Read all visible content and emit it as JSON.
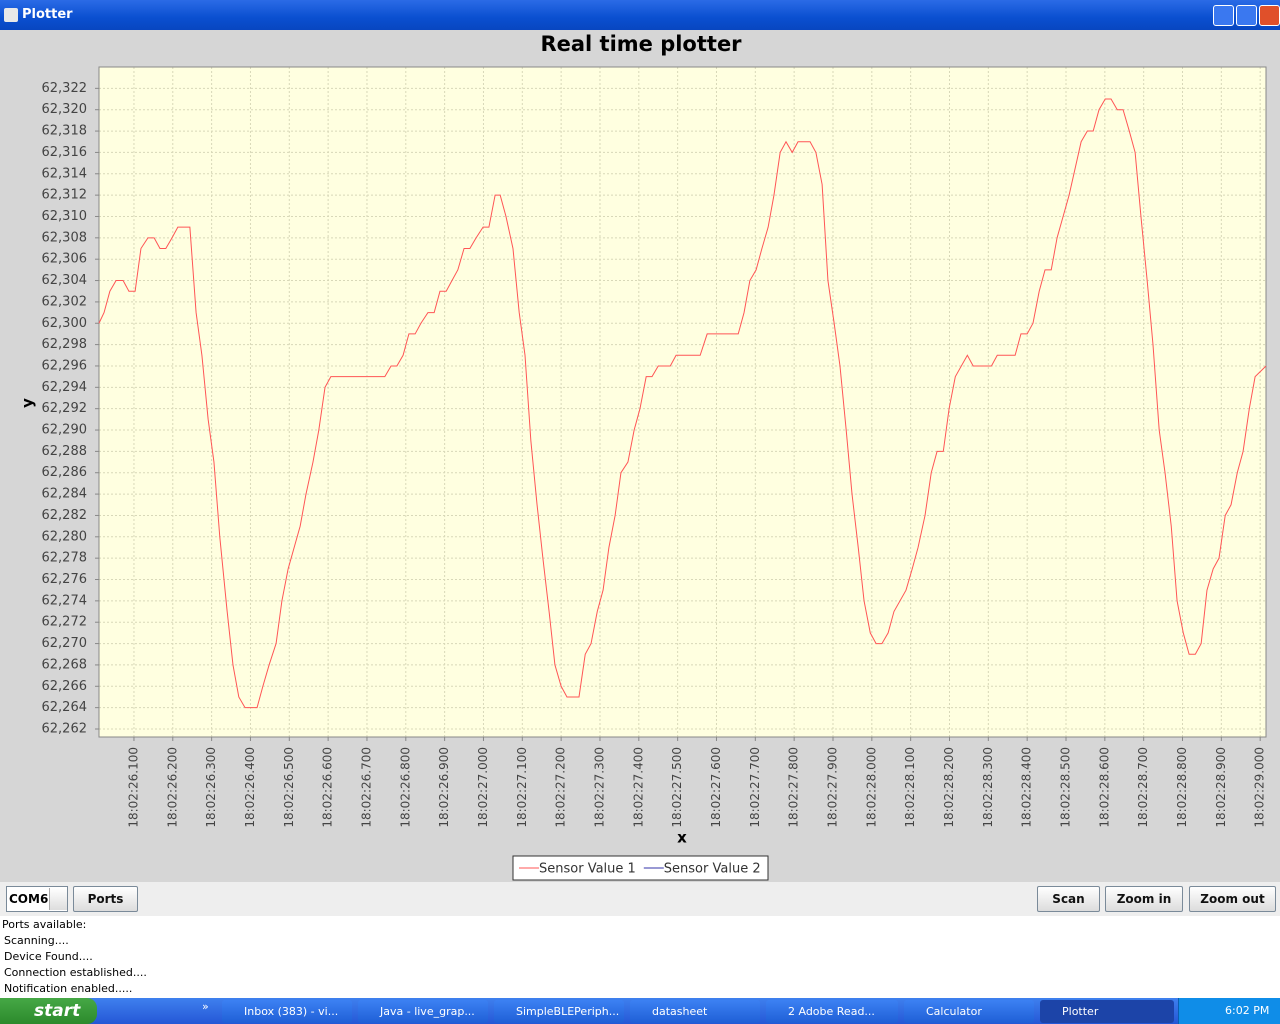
{
  "window": {
    "title": "Plotter"
  },
  "chart_data": {
    "type": "line",
    "title": "Real time plotter",
    "x_label": "x",
    "y_label": "y",
    "xlim": [
      26.01,
      29.015
    ],
    "ylim": [
      62261.25,
      62324
    ],
    "grid": true,
    "legend": "bottom",
    "xticks": [
      {
        "value": 26.1,
        "label": "18:02:26.100"
      },
      {
        "value": 26.2,
        "label": "18:02:26.200"
      },
      {
        "value": 26.3,
        "label": "18:02:26.300"
      },
      {
        "value": 26.4,
        "label": "18:02:26.400"
      },
      {
        "value": 26.5,
        "label": "18:02:26.500"
      },
      {
        "value": 26.6,
        "label": "18:02:26.600"
      },
      {
        "value": 26.7,
        "label": "18:02:26.700"
      },
      {
        "value": 26.8,
        "label": "18:02:26.800"
      },
      {
        "value": 26.9,
        "label": "18:02:26.900"
      },
      {
        "value": 27.0,
        "label": "18:02:27.000"
      },
      {
        "value": 27.1,
        "label": "18:02:27.100"
      },
      {
        "value": 27.2,
        "label": "18:02:27.200"
      },
      {
        "value": 27.3,
        "label": "18:02:27.300"
      },
      {
        "value": 27.4,
        "label": "18:02:27.400"
      },
      {
        "value": 27.5,
        "label": "18:02:27.500"
      },
      {
        "value": 27.6,
        "label": "18:02:27.600"
      },
      {
        "value": 27.7,
        "label": "18:02:27.700"
      },
      {
        "value": 27.8,
        "label": "18:02:27.800"
      },
      {
        "value": 27.9,
        "label": "18:02:27.900"
      },
      {
        "value": 28.0,
        "label": "18:02:28.000"
      },
      {
        "value": 28.1,
        "label": "18:02:28.100"
      },
      {
        "value": 28.2,
        "label": "18:02:28.200"
      },
      {
        "value": 28.3,
        "label": "18:02:28.300"
      },
      {
        "value": 28.4,
        "label": "18:02:28.400"
      },
      {
        "value": 28.5,
        "label": "18:02:28.500"
      },
      {
        "value": 28.6,
        "label": "18:02:28.600"
      },
      {
        "value": 28.7,
        "label": "18:02:28.700"
      },
      {
        "value": 28.8,
        "label": "18:02:28.800"
      },
      {
        "value": 28.9,
        "label": "18:02:28.900"
      },
      {
        "value": 29.0,
        "label": "18:02:29.000"
      }
    ],
    "yticks": [
      {
        "value": 62262,
        "label": "62,262"
      },
      {
        "value": 62264,
        "label": "62,264"
      },
      {
        "value": 62266,
        "label": "62,266"
      },
      {
        "value": 62268,
        "label": "62,268"
      },
      {
        "value": 62270,
        "label": "62,270"
      },
      {
        "value": 62272,
        "label": "62,272"
      },
      {
        "value": 62274,
        "label": "62,274"
      },
      {
        "value": 62276,
        "label": "62,276"
      },
      {
        "value": 62278,
        "label": "62,278"
      },
      {
        "value": 62280,
        "label": "62,280"
      },
      {
        "value": 62282,
        "label": "62,282"
      },
      {
        "value": 62284,
        "label": "62,284"
      },
      {
        "value": 62286,
        "label": "62,286"
      },
      {
        "value": 62288,
        "label": "62,288"
      },
      {
        "value": 62290,
        "label": "62,290"
      },
      {
        "value": 62292,
        "label": "62,292"
      },
      {
        "value": 62294,
        "label": "62,294"
      },
      {
        "value": 62296,
        "label": "62,296"
      },
      {
        "value": 62298,
        "label": "62,298"
      },
      {
        "value": 62300,
        "label": "62,300"
      },
      {
        "value": 62302,
        "label": "62,302"
      },
      {
        "value": 62304,
        "label": "62,304"
      },
      {
        "value": 62306,
        "label": "62,306"
      },
      {
        "value": 62308,
        "label": "62,308"
      },
      {
        "value": 62310,
        "label": "62,310"
      },
      {
        "value": 62312,
        "label": "62,312"
      },
      {
        "value": 62314,
        "label": "62,314"
      },
      {
        "value": 62316,
        "label": "62,316"
      },
      {
        "value": 62318,
        "label": "62,318"
      },
      {
        "value": 62320,
        "label": "62,320"
      },
      {
        "value": 62322,
        "label": "62,322"
      }
    ],
    "series": [
      {
        "name": "Sensor Value 1",
        "color": "#ff5555",
        "x": [
          26.01,
          26.023,
          26.038,
          26.054,
          26.072,
          26.087,
          26.103,
          26.118,
          26.136,
          26.152,
          26.167,
          26.182,
          26.198,
          26.213,
          26.244,
          26.26,
          26.275,
          26.291,
          26.306,
          26.321,
          26.34,
          26.355,
          26.37,
          26.386,
          26.417,
          26.432,
          26.448,
          26.466,
          26.481,
          26.497,
          26.528,
          26.543,
          26.561,
          26.576,
          26.592,
          26.607,
          26.746,
          26.762,
          26.777,
          26.793,
          26.808,
          26.824,
          26.839,
          26.857,
          26.873,
          26.888,
          26.904,
          26.919,
          26.934,
          26.95,
          26.965,
          26.981,
          26.999,
          27.014,
          27.03,
          27.043,
          27.058,
          27.076,
          27.092,
          27.107,
          27.122,
          27.138,
          27.153,
          27.169,
          27.184,
          27.2,
          27.215,
          27.246,
          27.262,
          27.277,
          27.293,
          27.308,
          27.323,
          27.339,
          27.354,
          27.372,
          27.388,
          27.403,
          27.419,
          27.434,
          27.45,
          27.481,
          27.496,
          27.558,
          27.576,
          27.656,
          27.671,
          27.686,
          27.702,
          27.717,
          27.733,
          27.748,
          27.764,
          27.779,
          27.795,
          27.81,
          27.841,
          27.856,
          27.872,
          27.887,
          27.903,
          27.918,
          27.934,
          27.949,
          27.965,
          27.98,
          27.996,
          28.011,
          28.026,
          28.042,
          28.057,
          28.088,
          28.104,
          28.119,
          28.137,
          28.153,
          28.168,
          28.184,
          28.199,
          28.215,
          28.246,
          28.261,
          28.308,
          28.323,
          28.369,
          28.384,
          28.4,
          28.415,
          28.431,
          28.446,
          28.462,
          28.477,
          28.508,
          28.539,
          28.555,
          28.57,
          28.585,
          28.601,
          28.616,
          28.632,
          28.647,
          28.663,
          28.678,
          28.693,
          28.709,
          28.724,
          28.74,
          28.755,
          28.771,
          28.786,
          28.802,
          28.817,
          28.833,
          28.848,
          28.863,
          28.879,
          28.894,
          28.91,
          28.925,
          28.941,
          28.956,
          28.972,
          28.987,
          29.015
        ],
        "values": [
          62300,
          62301,
          62303,
          62304,
          62304,
          62303,
          62303,
          62307,
          62308,
          62308,
          62307,
          62307,
          62308,
          62309,
          62309,
          62301,
          62297,
          62291,
          62287,
          62280,
          62273,
          62268,
          62265,
          62264,
          62264,
          62266,
          62268,
          62270,
          62274,
          62277,
          62281,
          62284,
          62287,
          62290,
          62294,
          62295,
          62295,
          62296,
          62296,
          62297,
          62299,
          62299,
          62300,
          62301,
          62301,
          62303,
          62303,
          62304,
          62305,
          62307,
          62307,
          62308,
          62309,
          62309,
          62312,
          62312,
          62310,
          62307,
          62301,
          62297,
          62289,
          62283,
          62278,
          62273,
          62268,
          62266,
          62265,
          62265,
          62269,
          62270,
          62273,
          62275,
          62279,
          62282,
          62286,
          62287,
          62290,
          62292,
          62295,
          62295,
          62296,
          62296,
          62297,
          62297,
          62299,
          62299,
          62301,
          62304,
          62305,
          62307,
          62309,
          62312,
          62316,
          62317,
          62316,
          62317,
          62317,
          62316,
          62313,
          62304,
          62300,
          62296,
          62290,
          62284,
          62279,
          62274,
          62271,
          62270,
          62270,
          62271,
          62273,
          62275,
          62277,
          62279,
          62282,
          62286,
          62288,
          62288,
          62292,
          62295,
          62297,
          62296,
          62296,
          62297,
          62297,
          62299,
          62299,
          62300,
          62303,
          62305,
          62305,
          62308,
          62312,
          62317,
          62318,
          62318,
          62320,
          62321,
          62321,
          62320,
          62320,
          62318,
          62316,
          62310,
          62304,
          62298,
          62290,
          62286,
          62281,
          62274,
          62271,
          62269,
          62269,
          62270,
          62275,
          62277,
          62278,
          62282,
          62283,
          62286,
          62288,
          62292,
          62295,
          62296
        ]
      },
      {
        "name": "Sensor Value 2",
        "color": "#3333aa",
        "x": [],
        "values": []
      }
    ]
  },
  "toolbar": {
    "port": "COM6",
    "buttons": [
      "Ports",
      "Scan",
      "Zoom in",
      "Zoom out"
    ]
  },
  "log": [
    "Ports available:",
    "Scanning....",
    "Device Found....",
    "Connection established....",
    "Notification enabled....."
  ],
  "taskbar": {
    "start": "start",
    "more": "»",
    "items": [
      "Inbox (383) - vi...",
      "Java - live_grap...",
      "SimpleBLEPeriph...",
      "datasheet",
      "2 Adobe Read...",
      "Calculator",
      "Plotter"
    ],
    "clock": "6:02 PM"
  }
}
